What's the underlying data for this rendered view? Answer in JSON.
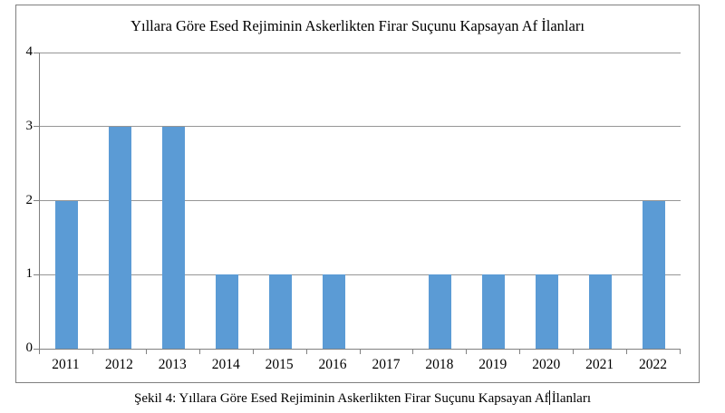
{
  "chart_data": {
    "type": "bar",
    "title": "Yıllara Göre Esed Rejiminin Askerlikten Firar Suçunu Kapsayan Af İlanları",
    "categories": [
      "2011",
      "2012",
      "2013",
      "2014",
      "2015",
      "2016",
      "2017",
      "2018",
      "2019",
      "2020",
      "2021",
      "2022"
    ],
    "values": [
      2,
      3,
      3,
      1,
      1,
      1,
      0,
      1,
      1,
      1,
      1,
      2
    ],
    "xlabel": "",
    "ylabel": "",
    "ylim": [
      0,
      4
    ],
    "yticks": [
      0,
      1,
      2,
      3,
      4
    ],
    "grid": true,
    "legend": false
  },
  "caption": {
    "prefix": "Şekil 4: Yıllara Göre Esed Rejiminin Askerlikten Firar Suçunu Kapsayan Af",
    "suffix": "İlanları"
  },
  "colors": {
    "bar": "#5B9BD5",
    "gridline": "#969696",
    "axis": "#808080",
    "frame_border": "#7F7F7F"
  }
}
